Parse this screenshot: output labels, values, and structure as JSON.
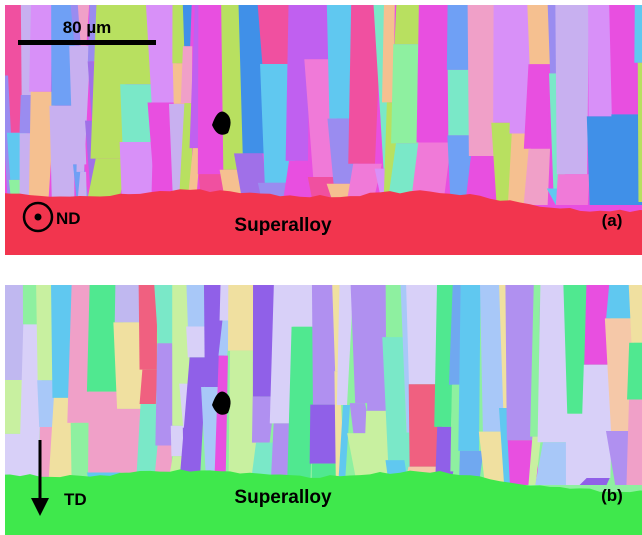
{
  "panel_a": {
    "scale_bar": "80 µm",
    "direction": "ND",
    "substrate": "Superalloy",
    "label": "(a)"
  },
  "panel_b": {
    "direction": "TD",
    "substrate": "Superalloy",
    "label": "(b)"
  }
}
